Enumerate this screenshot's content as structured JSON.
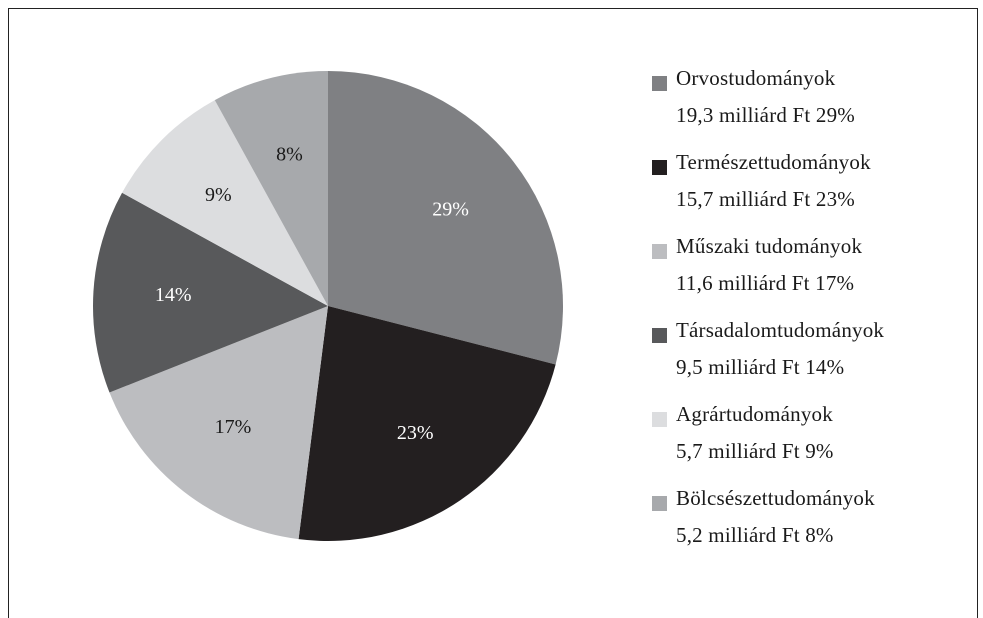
{
  "chart_data": {
    "type": "pie",
    "legend_position": "right",
    "slices": [
      {
        "name": "Orvostudományok",
        "amount": "19,3 milliárd Ft",
        "percent": 29,
        "percent_label": "29%",
        "legend_value": "19,3 milliárd Ft 29%",
        "color": "#7f8083",
        "label_color": "#ffffff"
      },
      {
        "name": "Természettudományok",
        "amount": "15,7 milliárd Ft",
        "percent": 23,
        "percent_label": "23%",
        "legend_value": "15,7 milliárd Ft 23%",
        "color": "#231f20",
        "label_color": "#ffffff"
      },
      {
        "name": "Műszaki tudományok",
        "amount": "11,6 milliárd Ft",
        "percent": 17,
        "percent_label": "17%",
        "legend_value": "11,6 milliárd Ft 17%",
        "color": "#bcbdc0",
        "label_color": "#1a1a1a"
      },
      {
        "name": "Társadalomtudományok",
        "amount": "9,5 milliárd Ft",
        "percent": 14,
        "percent_label": "14%",
        "legend_value": "9,5 milliárd Ft 14%",
        "color": "#58595b",
        "label_color": "#ffffff"
      },
      {
        "name": "Agrártudományok",
        "amount": "5,7 milliárd Ft",
        "percent": 9,
        "percent_label": "9%",
        "legend_value": "5,7 milliárd Ft 9%",
        "color": "#dcdddf",
        "label_color": "#1a1a1a"
      },
      {
        "name": "Bölcsészettudományok",
        "amount": "5,2 milliárd Ft",
        "percent": 8,
        "percent_label": "8%",
        "legend_value": "5,2 milliárd Ft 8%",
        "color": "#a7a9ac",
        "label_color": "#1a1a1a"
      }
    ]
  }
}
